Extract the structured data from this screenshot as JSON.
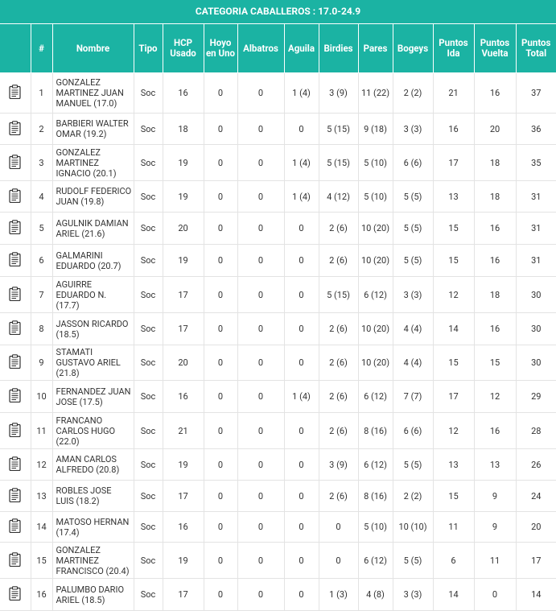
{
  "title": "CATEGORIA CABALLEROS : 17.0-24.9",
  "columns": [
    "",
    "#",
    "Nombre",
    "Tipo",
    "HCP Usado",
    "Hoyo en Uno",
    "Albatros",
    "Aguila",
    "Birdies",
    "Pares",
    "Bogeys",
    "Puntos Ida",
    "Puntos Vuelta",
    "Puntos Total"
  ],
  "rows": [
    {
      "pos": "1",
      "name": "GONZALEZ MARTINEZ JUAN MANUEL (17.0)",
      "tipo": "Soc",
      "hcp": "16",
      "hoyo": "0",
      "albatros": "0",
      "aguila": "1 (4)",
      "birdies": "3 (9)",
      "pares": "11 (22)",
      "bogeys": "2 (2)",
      "ida": "21",
      "vuelta": "16",
      "total": "37"
    },
    {
      "pos": "2",
      "name": "BARBIERI WALTER OMAR (19.2)",
      "tipo": "Soc",
      "hcp": "18",
      "hoyo": "0",
      "albatros": "0",
      "aguila": "0",
      "birdies": "5 (15)",
      "pares": "9 (18)",
      "bogeys": "3 (3)",
      "ida": "16",
      "vuelta": "20",
      "total": "36"
    },
    {
      "pos": "3",
      "name": "GONZALEZ MARTINEZ IGNACIO (20.1)",
      "tipo": "Soc",
      "hcp": "19",
      "hoyo": "0",
      "albatros": "0",
      "aguila": "1 (4)",
      "birdies": "5 (15)",
      "pares": "5 (10)",
      "bogeys": "6 (6)",
      "ida": "17",
      "vuelta": "18",
      "total": "35"
    },
    {
      "pos": "4",
      "name": "RUDOLF FEDERICO JUAN (19.8)",
      "tipo": "Soc",
      "hcp": "19",
      "hoyo": "0",
      "albatros": "0",
      "aguila": "1 (4)",
      "birdies": "4 (12)",
      "pares": "5 (10)",
      "bogeys": "5 (5)",
      "ida": "13",
      "vuelta": "18",
      "total": "31"
    },
    {
      "pos": "5",
      "name": "AGULNIK DAMIAN ARIEL (21.6)",
      "tipo": "Soc",
      "hcp": "20",
      "hoyo": "0",
      "albatros": "0",
      "aguila": "0",
      "birdies": "2 (6)",
      "pares": "10 (20)",
      "bogeys": "5 (5)",
      "ida": "15",
      "vuelta": "16",
      "total": "31"
    },
    {
      "pos": "6",
      "name": "GALMARINI EDUARDO (20.7)",
      "tipo": "Soc",
      "hcp": "19",
      "hoyo": "0",
      "albatros": "0",
      "aguila": "0",
      "birdies": "2 (6)",
      "pares": "10 (20)",
      "bogeys": "5 (5)",
      "ida": "15",
      "vuelta": "16",
      "total": "31"
    },
    {
      "pos": "7",
      "name": "AGUIRRE EDUARDO N. (17.7)",
      "tipo": "Soc",
      "hcp": "17",
      "hoyo": "0",
      "albatros": "0",
      "aguila": "0",
      "birdies": "5 (15)",
      "pares": "6 (12)",
      "bogeys": "3 (3)",
      "ida": "12",
      "vuelta": "18",
      "total": "30"
    },
    {
      "pos": "8",
      "name": "JASSON RICARDO (18.5)",
      "tipo": "Soc",
      "hcp": "17",
      "hoyo": "0",
      "albatros": "0",
      "aguila": "0",
      "birdies": "2 (6)",
      "pares": "10 (20)",
      "bogeys": "4 (4)",
      "ida": "14",
      "vuelta": "16",
      "total": "30"
    },
    {
      "pos": "9",
      "name": "STAMATI GUSTAVO ARIEL (21.8)",
      "tipo": "Soc",
      "hcp": "20",
      "hoyo": "0",
      "albatros": "0",
      "aguila": "0",
      "birdies": "2 (6)",
      "pares": "10 (20)",
      "bogeys": "4 (4)",
      "ida": "15",
      "vuelta": "15",
      "total": "30"
    },
    {
      "pos": "10",
      "name": "FERNANDEZ JUAN JOSE (17.5)",
      "tipo": "Soc",
      "hcp": "16",
      "hoyo": "0",
      "albatros": "0",
      "aguila": "1 (4)",
      "birdies": "2 (6)",
      "pares": "6 (12)",
      "bogeys": "7 (7)",
      "ida": "17",
      "vuelta": "12",
      "total": "29"
    },
    {
      "pos": "11",
      "name": "FRANCANO CARLOS HUGO (22.0)",
      "tipo": "Soc",
      "hcp": "21",
      "hoyo": "0",
      "albatros": "0",
      "aguila": "0",
      "birdies": "2 (6)",
      "pares": "8 (16)",
      "bogeys": "6 (6)",
      "ida": "12",
      "vuelta": "16",
      "total": "28"
    },
    {
      "pos": "12",
      "name": "AMAN CARLOS ALFREDO (20.8)",
      "tipo": "Soc",
      "hcp": "19",
      "hoyo": "0",
      "albatros": "0",
      "aguila": "0",
      "birdies": "3 (9)",
      "pares": "6 (12)",
      "bogeys": "5 (5)",
      "ida": "13",
      "vuelta": "13",
      "total": "26"
    },
    {
      "pos": "13",
      "name": "ROBLES JOSE LUIS (18.2)",
      "tipo": "Soc",
      "hcp": "17",
      "hoyo": "0",
      "albatros": "0",
      "aguila": "0",
      "birdies": "2 (6)",
      "pares": "8 (16)",
      "bogeys": "2 (2)",
      "ida": "15",
      "vuelta": "9",
      "total": "24"
    },
    {
      "pos": "14",
      "name": "MATOSO HERNAN (17.4)",
      "tipo": "Soc",
      "hcp": "16",
      "hoyo": "0",
      "albatros": "0",
      "aguila": "0",
      "birdies": "0",
      "pares": "5 (10)",
      "bogeys": "10 (10)",
      "ida": "11",
      "vuelta": "9",
      "total": "20"
    },
    {
      "pos": "15",
      "name": "GONZALEZ MARTINEZ FRANCISCO (20.4)",
      "tipo": "Soc",
      "hcp": "19",
      "hoyo": "0",
      "albatros": "0",
      "aguila": "0",
      "birdies": "0",
      "pares": "6 (12)",
      "bogeys": "5 (5)",
      "ida": "6",
      "vuelta": "11",
      "total": "17"
    },
    {
      "pos": "16",
      "name": "PALUMBO DARIO ARIEL (18.5)",
      "tipo": "Soc",
      "hcp": "17",
      "hoyo": "0",
      "albatros": "0",
      "aguila": "0",
      "birdies": "1 (3)",
      "pares": "4 (8)",
      "bogeys": "3 (3)",
      "ida": "14",
      "vuelta": "0",
      "total": "14"
    }
  ]
}
